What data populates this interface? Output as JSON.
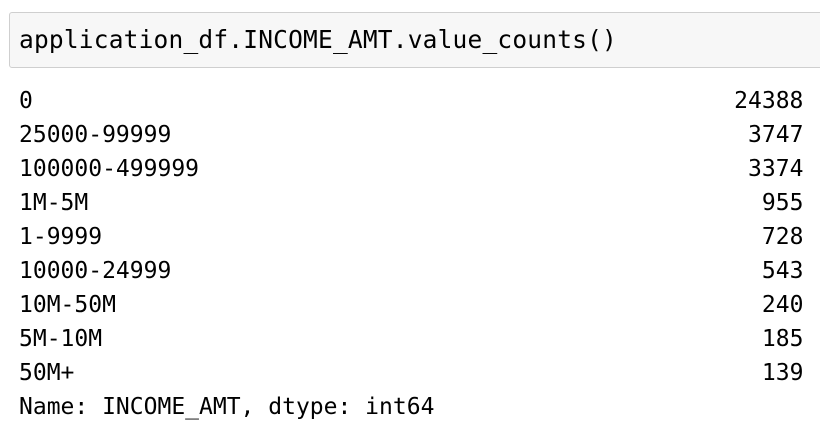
{
  "cell": {
    "input_code": "application_df.INCOME_AMT.value_counts()"
  },
  "output": {
    "rows": [
      {
        "label": "0",
        "count": "24388"
      },
      {
        "label": "25000-99999",
        "count": "3747"
      },
      {
        "label": "100000-499999",
        "count": "3374"
      },
      {
        "label": "1M-5M",
        "count": "955"
      },
      {
        "label": "1-9999",
        "count": "728"
      },
      {
        "label": "10000-24999",
        "count": "543"
      },
      {
        "label": "10M-50M",
        "count": "240"
      },
      {
        "label": "5M-10M",
        "count": "185"
      },
      {
        "label": "50M+",
        "count": "139"
      }
    ],
    "footer": "Name: INCOME_AMT, dtype: int64"
  },
  "colors": {
    "cell_background": "#f7f7f7",
    "cell_border": "#cfcfcf",
    "text": "#000000"
  }
}
